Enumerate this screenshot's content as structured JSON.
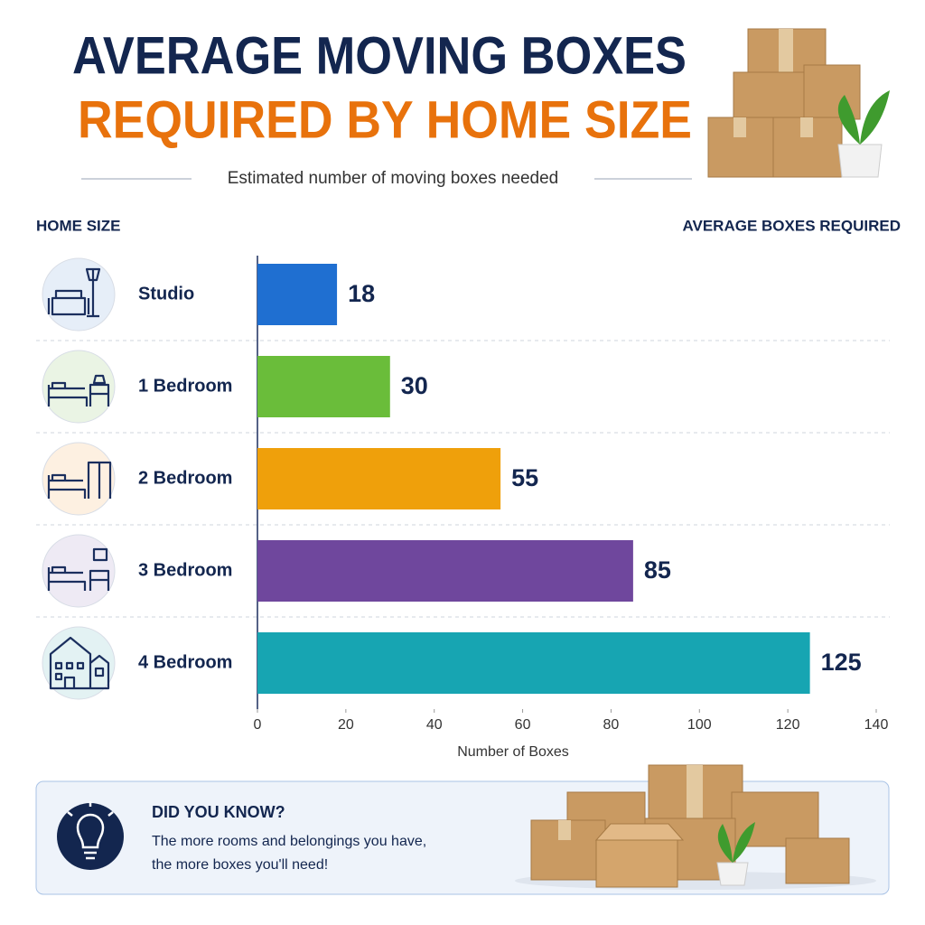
{
  "chart_data": {
    "type": "bar",
    "orientation": "horizontal",
    "title": [
      "AVERAGE MOVING BOXES",
      "REQUIRED BY HOME SIZE"
    ],
    "subtitle": "Estimated number of moving boxes needed",
    "category_header": "HOME SIZE",
    "value_header": "AVERAGE BOXES REQUIRED",
    "categories": [
      "Studio",
      "1 Bedroom",
      "2 Bedroom",
      "3 Bedroom",
      "4 Bedroom"
    ],
    "values": [
      18,
      30,
      55,
      85,
      125
    ],
    "colors": [
      "#1f6fd1",
      "#6abd3a",
      "#efa00b",
      "#6f479d",
      "#17a5b2"
    ],
    "xlim": [
      0,
      140
    ],
    "xticks": [
      0,
      20,
      40,
      60,
      80,
      100,
      120,
      140
    ],
    "xlabel": "Number of Boxes"
  },
  "callout": {
    "title": "DID YOU KNOW?",
    "lines": [
      "The more rooms and belongings you have,",
      "the more boxes you'll need!"
    ]
  }
}
